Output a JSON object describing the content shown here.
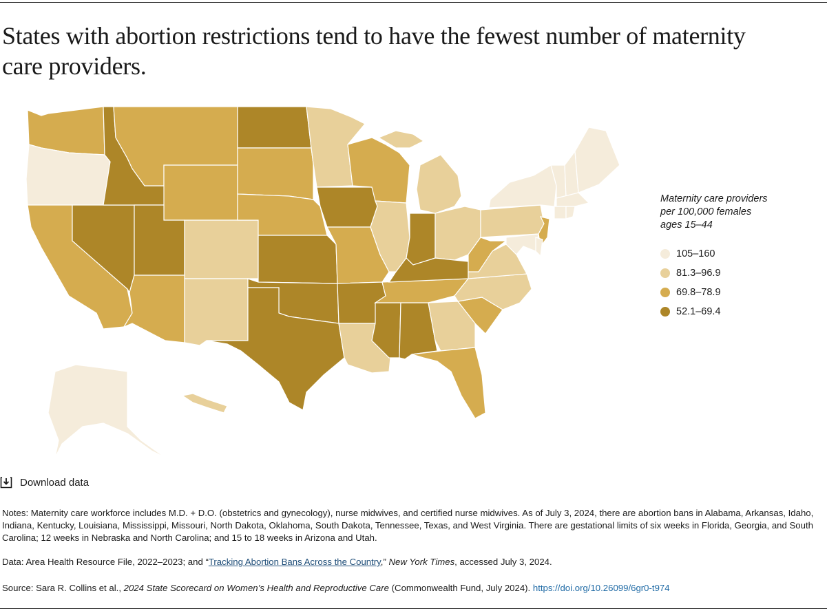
{
  "title": "States with abortion restrictions tend to have the fewest number of maternity care providers.",
  "legend": {
    "title_lines": [
      "Maternity care providers",
      "per 100,000 females",
      "ages 15–44"
    ],
    "items": [
      {
        "label": "105–160",
        "color": "#f5ecdb"
      },
      {
        "label": "81.3–96.9",
        "color": "#e8d09a"
      },
      {
        "label": "69.8–78.9",
        "color": "#d5ac4f"
      },
      {
        "label": "52.1–69.4",
        "color": "#ad8628"
      }
    ]
  },
  "map_colors": {
    "c1": "#f5ecdb",
    "c2": "#e8d09a",
    "c3": "#d5ac4f",
    "c4": "#ad8628"
  },
  "download": {
    "label": "Download data"
  },
  "notes": {
    "text": "Notes: Maternity care workforce includes M.D. + D.O. (obstetrics and gynecology), nurse midwives, and certified nurse midwives. As of July 3, 2024, there are abortion bans in Alabama, Arkansas, Idaho, Indiana, Kentucky, Louisiana, Mississippi, Missouri, North Dakota, Oklahoma, South Dakota, Tennessee, Texas, and West Virginia. There are gestational limits of six weeks in Florida, Georgia, and South Carolina; 12 weeks in Nebraska and North Carolina; and 15 to 18 weeks in Arizona and Utah."
  },
  "data_source": {
    "prefix": "Data: Area Health Resource File, 2022–2023; and “",
    "link": "Tracking Abortion Bans Across the Country",
    "mid": ",” ",
    "publication": "New York Times",
    "suffix": ", accessed July 3, 2024."
  },
  "source": {
    "prefix": "Source: Sara R. Collins et al., ",
    "title": "2024 State Scorecard on Women’s Health and Reproductive Care",
    "suffix": " (Commonwealth Fund, July 2024). ",
    "doi": "https://doi.org/10.26099/6gr0-t974"
  }
}
